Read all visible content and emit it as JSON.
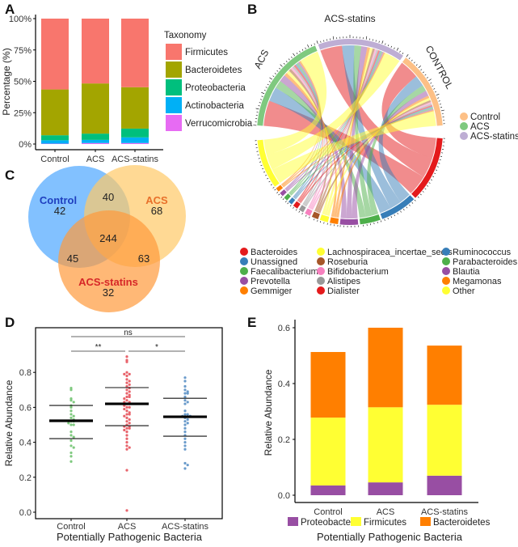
{
  "panels": {
    "A": "A",
    "B": "B",
    "C": "C",
    "D": "D",
    "E": "E"
  },
  "chart_data": [
    {
      "id": "A",
      "type": "bar",
      "stacked": true,
      "categories": [
        "Control",
        "ACS",
        "ACS-statins"
      ],
      "ylabel": "Percentage (%)",
      "xlabel": "",
      "ylim": [
        0,
        100
      ],
      "yticks": [
        "0%",
        "25%",
        "50%",
        "75%",
        "100%"
      ],
      "legend_title": "Taxonomy",
      "legend_position": "right",
      "series": [
        {
          "name": "Verrucomicrobia",
          "color": "#E76BF3",
          "values": [
            0.3,
            0.8,
            0.8
          ]
        },
        {
          "name": "Actinobacteria",
          "color": "#00B0F6",
          "values": [
            2.7,
            2.5,
            4.5
          ]
        },
        {
          "name": "Proteobacteria",
          "color": "#00BF7D",
          "values": [
            4.0,
            5.0,
            7.0
          ]
        },
        {
          "name": "Bacteroidetes",
          "color": "#A3A500",
          "values": [
            36.5,
            40.0,
            33.0
          ]
        },
        {
          "name": "Firmicutes",
          "color": "#F8766D",
          "values": [
            56.5,
            51.7,
            54.7
          ]
        }
      ],
      "legend_order": [
        "Firmicutes",
        "Bacteroidetes",
        "Proteobacteria",
        "Actinobacteria",
        "Verrucomicrobia"
      ]
    },
    {
      "id": "B",
      "type": "chord",
      "sectors": [
        {
          "name": "CONTROL",
          "label": "CONTROL",
          "color": "#FDC086",
          "ticks": [
            "0",
            "20",
            "40",
            "60",
            "80"
          ]
        },
        {
          "name": "ACS-statins",
          "label": "ACS-statins",
          "color": "#BEAED4",
          "ticks": [
            "0",
            "20",
            "40",
            "60",
            "80"
          ]
        },
        {
          "name": "ACS",
          "label": "ACS",
          "color": "#7FC97F",
          "ticks": [
            "0",
            "20",
            "40",
            "60",
            "80"
          ]
        }
      ],
      "genus_sectors": [
        {
          "name": "Bacteroides",
          "color": "#E41A1C",
          "size": 80
        },
        {
          "name": "Unassigned",
          "color": "#377EB8",
          "size": 45
        },
        {
          "name": "Faecalibacterium",
          "color": "#4DAF4A",
          "size": 25
        },
        {
          "name": "Blautia",
          "color": "#984EA3",
          "size": 22
        },
        {
          "name": "Megamonas",
          "color": "#FF7F00",
          "size": 10
        },
        {
          "name": "Lachnospiracea_incertae_sedis",
          "color": "#FFFF33",
          "size": 10
        },
        {
          "name": "Roseburia",
          "color": "#A65628",
          "size": 8
        },
        {
          "name": "Bifidobacterium",
          "color": "#F781BF",
          "size": 7
        },
        {
          "name": "Alistipes",
          "color": "#999999",
          "size": 6
        },
        {
          "name": "Dialister",
          "color": "#E41A1C",
          "size": 6
        },
        {
          "name": "Ruminococcus",
          "color": "#377EB8",
          "size": 5
        },
        {
          "name": "Parabacteroides",
          "color": "#4DAF4A",
          "size": 5
        },
        {
          "name": "Prevotella",
          "color": "#984EA3",
          "size": 5
        },
        {
          "name": "Gemmiger",
          "color": "#FF7F00",
          "size": 5
        },
        {
          "name": "Other",
          "color": "#FFFF33",
          "size": 60
        }
      ],
      "group_legend": [
        {
          "name": "Control",
          "color": "#FDC086"
        },
        {
          "name": "ACS",
          "color": "#7FC97F"
        },
        {
          "name": "ACS-statins",
          "color": "#BEAED4"
        }
      ],
      "genus_legend_columns": [
        [
          {
            "name": "Bacteroides",
            "color": "#E41A1C"
          },
          {
            "name": "Unassigned",
            "color": "#377EB8"
          },
          {
            "name": "Faecalibacterium",
            "color": "#4DAF4A"
          },
          {
            "name": "Prevotella",
            "color": "#984EA3"
          },
          {
            "name": "Gemmiger",
            "color": "#FF7F00"
          }
        ],
        [
          {
            "name": "Lachnospiracea_incertae_sedis",
            "color": "#FFFF33"
          },
          {
            "name": "Roseburia",
            "color": "#A65628"
          },
          {
            "name": "Bifidobacterium",
            "color": "#F781BF"
          },
          {
            "name": "Alistipes",
            "color": "#999999"
          },
          {
            "name": "Dialister",
            "color": "#E41A1C"
          }
        ],
        [
          {
            "name": "Ruminococcus",
            "color": "#377EB8"
          },
          {
            "name": "Parabacteroides",
            "color": "#4DAF4A"
          },
          {
            "name": "Blautia",
            "color": "#984EA3"
          },
          {
            "name": "Megamonas",
            "color": "#FF7F00"
          },
          {
            "name": "Other",
            "color": "#FFFF33"
          }
        ]
      ]
    },
    {
      "id": "C",
      "type": "venn",
      "sets": [
        {
          "name": "Control",
          "color": "#4DA6FF",
          "label_color": "#1F3FBF",
          "only": 42
        },
        {
          "name": "ACS",
          "color": "#FFC966",
          "label_color": "#E8702A",
          "only": 68
        },
        {
          "name": "ACS-statins",
          "color": "#FF9A3C",
          "label_color": "#D62728",
          "only": 32
        }
      ],
      "intersections": {
        "Control&ACS": 40,
        "Control&ACS-statins": 45,
        "ACS&ACS-statins": 63,
        "all": 244
      }
    },
    {
      "id": "D",
      "type": "scatter",
      "title": "",
      "xlabel": "Potentially Pathogenic Bacteria",
      "ylabel": "Relative Abundance",
      "categories": [
        "Control",
        "ACS",
        "ACS-statins"
      ],
      "ylim": [
        -0.02,
        1.0
      ],
      "yticks": [
        0.0,
        0.2,
        0.4,
        0.6,
        0.8
      ],
      "ytick_labels": [
        "0.0",
        "0.2",
        "0.4",
        "0.6",
        "0.8"
      ],
      "colors": [
        "#7FC97F",
        "#E8636B",
        "#6A9BCB"
      ],
      "summary": [
        {
          "mean": 0.523,
          "upper": 0.611,
          "lower": 0.421
        },
        {
          "mean": 0.62,
          "upper": 0.713,
          "lower": 0.495
        },
        {
          "mean": 0.546,
          "upper": 0.652,
          "lower": 0.435
        }
      ],
      "points": [
        [
          0.71,
          0.7,
          0.65,
          0.64,
          0.63,
          0.61,
          0.6,
          0.58,
          0.56,
          0.55,
          0.54,
          0.53,
          0.52,
          0.52,
          0.51,
          0.5,
          0.5,
          0.46,
          0.44,
          0.43,
          0.41,
          0.38,
          0.37,
          0.34,
          0.32,
          0.29
        ],
        [
          0.89,
          0.87,
          0.86,
          0.8,
          0.79,
          0.79,
          0.78,
          0.76,
          0.75,
          0.74,
          0.73,
          0.72,
          0.71,
          0.7,
          0.69,
          0.68,
          0.67,
          0.66,
          0.66,
          0.65,
          0.64,
          0.63,
          0.63,
          0.62,
          0.62,
          0.61,
          0.6,
          0.6,
          0.59,
          0.58,
          0.57,
          0.56,
          0.56,
          0.55,
          0.54,
          0.53,
          0.52,
          0.51,
          0.5,
          0.49,
          0.49,
          0.48,
          0.48,
          0.47,
          0.46,
          0.44,
          0.42,
          0.4,
          0.38,
          0.37,
          0.36,
          0.24,
          0.01
        ],
        [
          0.77,
          0.75,
          0.72,
          0.7,
          0.69,
          0.68,
          0.68,
          0.66,
          0.64,
          0.63,
          0.62,
          0.58,
          0.56,
          0.56,
          0.55,
          0.55,
          0.54,
          0.53,
          0.52,
          0.51,
          0.5,
          0.48,
          0.46,
          0.44,
          0.42,
          0.4,
          0.38,
          0.36,
          0.28,
          0.27,
          0.25
        ]
      ],
      "significance": [
        {
          "pair": [
            "Control",
            "ACS-statins"
          ],
          "label": "ns"
        },
        {
          "pair": [
            "Control",
            "ACS"
          ],
          "label": "**"
        },
        {
          "pair": [
            "ACS",
            "ACS-statins"
          ],
          "label": "*"
        }
      ]
    },
    {
      "id": "E",
      "type": "bar",
      "stacked": true,
      "categories": [
        "Control",
        "ACS",
        "ACS-statins"
      ],
      "xlabel": "Potentially Pathogenic Bacteria",
      "ylabel": "Relative Abundance",
      "ylim": [
        0,
        0.62
      ],
      "yticks": [
        0.0,
        0.2,
        0.4,
        0.6
      ],
      "ytick_labels": [
        "0.0",
        "0.2",
        "0.4",
        "0.6"
      ],
      "legend_position": "bottom",
      "series": [
        {
          "name": "Proteobacteria",
          "color": "#984EA3",
          "values": [
            0.035,
            0.046,
            0.07
          ]
        },
        {
          "name": "Firmicutes",
          "color": "#FFFF33",
          "values": [
            0.243,
            0.269,
            0.254
          ]
        },
        {
          "name": "Bacteroidetes",
          "color": "#FF7F00",
          "values": [
            0.235,
            0.285,
            0.212
          ]
        }
      ]
    }
  ]
}
